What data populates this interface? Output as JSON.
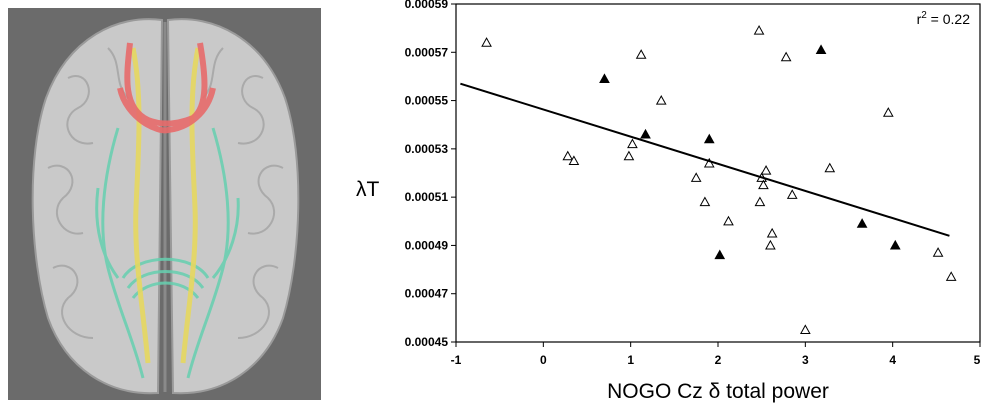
{
  "figure": {
    "brain_image": {
      "description_icon": "brain-tractography-icon",
      "background": "#6b6b6b",
      "tract_colors": {
        "frontal": "#e86b6b",
        "central": "#e6d860",
        "posterior": "#66d0b0"
      }
    }
  },
  "chart_data": {
    "type": "scatter",
    "title": "",
    "xlabel": "NOGO Cz δ total power",
    "ylabel": "λT",
    "xlim": [
      -1,
      5
    ],
    "ylim": [
      0.00045,
      0.00059
    ],
    "x_ticks": [
      "-1",
      "0",
      "1",
      "2",
      "3",
      "4",
      "5"
    ],
    "y_ticks": [
      "0.00045",
      "0.00047",
      "0.00049",
      "0.00051",
      "0.00053",
      "0.00055",
      "0.00057",
      "0.00059"
    ],
    "annotation": {
      "text_main": "r",
      "text_sup": "2",
      "text_rest": " = 0.22"
    },
    "series": [
      {
        "marker": "open-triangle",
        "points": [
          [
            -0.65,
            0.000574
          ],
          [
            0.28,
            0.000527
          ],
          [
            0.35,
            0.000525
          ],
          [
            0.98,
            0.000527
          ],
          [
            1.02,
            0.000532
          ],
          [
            1.12,
            0.000569
          ],
          [
            1.35,
            0.00055
          ],
          [
            1.75,
            0.000518
          ],
          [
            1.85,
            0.000508
          ],
          [
            1.9,
            0.000524
          ],
          [
            2.12,
            0.0005
          ],
          [
            2.47,
            0.000579
          ],
          [
            2.48,
            0.000508
          ],
          [
            2.5,
            0.000518
          ],
          [
            2.52,
            0.000515
          ],
          [
            2.55,
            0.000521
          ],
          [
            2.6,
            0.00049
          ],
          [
            2.62,
            0.000495
          ],
          [
            2.78,
            0.000568
          ],
          [
            2.85,
            0.000511
          ],
          [
            3.0,
            0.000455
          ],
          [
            3.28,
            0.000522
          ],
          [
            3.95,
            0.000545
          ],
          [
            4.52,
            0.000487
          ],
          [
            4.67,
            0.000477
          ]
        ]
      },
      {
        "marker": "filled-triangle",
        "points": [
          [
            0.7,
            0.000559
          ],
          [
            1.17,
            0.000536
          ],
          [
            1.9,
            0.000534
          ],
          [
            2.02,
            0.000486
          ],
          [
            3.18,
            0.000571
          ],
          [
            3.65,
            0.000499
          ],
          [
            4.03,
            0.00049
          ]
        ]
      }
    ],
    "trendline": {
      "x": [
        -0.95,
        4.65
      ],
      "y": [
        0.000557,
        0.000494
      ]
    },
    "grid": false
  }
}
